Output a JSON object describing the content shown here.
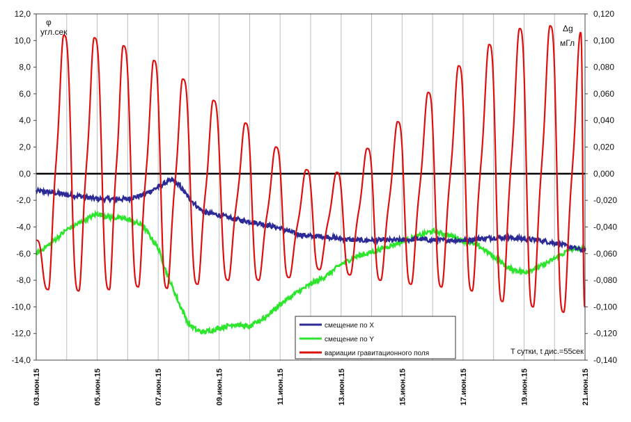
{
  "chart_data": {
    "type": "line",
    "left_axis": {
      "symbol": "φ",
      "unit": "угл.сек",
      "ylim": [
        -14,
        12
      ],
      "ticks": [
        "12,0",
        "10,0",
        "8,0",
        "6,0",
        "4,0",
        "2,0",
        "0,0",
        "-2,0",
        "-4,0",
        "-6,0",
        "-8,0",
        "-10,0",
        "-12,0",
        "-14,0"
      ]
    },
    "right_axis": {
      "symbol": "Δg",
      "unit": "мГл",
      "ylim": [
        -0.14,
        0.12
      ],
      "ticks": [
        "0,120",
        "0,100",
        "0,080",
        "0,060",
        "0,040",
        "0,020",
        "0,000",
        "-0,020",
        "-0,040",
        "-0,060",
        "-0,080",
        "-0,100",
        "-0,120",
        "-0,140"
      ]
    },
    "x_axis": {
      "range_days": [
        3,
        21
      ],
      "tick_labels": [
        "03.июн.15",
        "05.июн.15",
        "07.июн.15",
        "09.июн.15",
        "11.июн.15",
        "13.июн.15",
        "15.июн.15",
        "17.июн.15",
        "19.июн.15",
        "21.июн.15"
      ],
      "note": "T сутки, t дис.=55сек"
    },
    "grid": "vertical",
    "legend_position": "bottom-center",
    "series": [
      {
        "name": "смещение по X",
        "color": "#2b2a96",
        "axis": "left",
        "x": [
          3.0,
          3.5,
          4.0,
          4.5,
          5.0,
          5.5,
          6.0,
          6.5,
          7.0,
          7.3,
          7.5,
          7.7,
          8.0,
          8.3,
          8.5,
          9.0,
          9.5,
          10.0,
          10.5,
          11.0,
          11.5,
          12.0,
          12.5,
          13.0,
          13.5,
          14.0,
          14.5,
          15.0,
          15.5,
          16.0,
          16.5,
          17.0,
          17.5,
          18.0,
          18.5,
          19.0,
          19.5,
          20.0,
          20.5,
          21.0
        ],
        "y": [
          -1.3,
          -1.4,
          -1.6,
          -1.7,
          -1.9,
          -1.9,
          -1.9,
          -1.6,
          -1.0,
          -0.6,
          -0.5,
          -0.9,
          -1.8,
          -2.5,
          -2.9,
          -3.1,
          -3.4,
          -3.6,
          -3.8,
          -4.1,
          -4.5,
          -4.7,
          -4.7,
          -4.9,
          -5.0,
          -5.0,
          -5.0,
          -5.0,
          -4.9,
          -5.0,
          -5.0,
          -5.0,
          -4.9,
          -4.8,
          -4.8,
          -4.9,
          -5.0,
          -5.2,
          -5.5,
          -5.8
        ]
      },
      {
        "name": "смещение по Y",
        "color": "#2ee52e",
        "axis": "left",
        "x": [
          3.0,
          3.5,
          4.0,
          4.5,
          5.0,
          5.5,
          6.0,
          6.5,
          7.0,
          7.3,
          7.7,
          8.0,
          8.3,
          8.5,
          9.0,
          9.5,
          10.0,
          10.5,
          11.0,
          11.5,
          12.0,
          12.5,
          13.0,
          13.5,
          14.0,
          14.5,
          15.0,
          15.5,
          16.0,
          16.5,
          17.0,
          17.5,
          18.0,
          18.5,
          19.0,
          19.5,
          20.0,
          20.5,
          21.0
        ],
        "y": [
          -6.0,
          -5.2,
          -4.2,
          -3.6,
          -3.0,
          -3.3,
          -3.4,
          -3.9,
          -5.6,
          -7.6,
          -9.8,
          -11.3,
          -11.8,
          -11.9,
          -11.6,
          -11.3,
          -11.5,
          -10.8,
          -9.8,
          -9.0,
          -8.3,
          -7.7,
          -6.8,
          -6.2,
          -5.9,
          -5.5,
          -5.1,
          -4.7,
          -4.3,
          -4.6,
          -5.0,
          -5.4,
          -6.2,
          -7.1,
          -7.4,
          -7.0,
          -6.4,
          -5.7,
          -5.6
        ]
      },
      {
        "name": "вариации гравитационного поля",
        "color": "#dd1010",
        "axis": "right",
        "peaks": [
          {
            "day": 3.9,
            "value": 0.104
          },
          {
            "day": 4.9,
            "value": 0.102
          },
          {
            "day": 5.85,
            "value": 0.096
          },
          {
            "day": 6.85,
            "value": 0.085
          },
          {
            "day": 7.8,
            "value": 0.071
          },
          {
            "day": 8.8,
            "value": 0.055
          },
          {
            "day": 9.85,
            "value": 0.038
          },
          {
            "day": 10.85,
            "value": 0.02
          },
          {
            "day": 11.85,
            "value": 0.003
          },
          {
            "day": 12.85,
            "value": 0.001
          },
          {
            "day": 13.85,
            "value": 0.019
          },
          {
            "day": 14.85,
            "value": 0.039
          },
          {
            "day": 15.85,
            "value": 0.061
          },
          {
            "day": 16.85,
            "value": 0.081
          },
          {
            "day": 17.85,
            "value": 0.097
          },
          {
            "day": 18.85,
            "value": 0.109
          },
          {
            "day": 19.85,
            "value": 0.111
          },
          {
            "day": 20.85,
            "value": 0.106
          }
        ],
        "troughs": [
          {
            "day": 3.4,
            "value": -0.087
          },
          {
            "day": 4.4,
            "value": -0.088
          },
          {
            "day": 5.4,
            "value": -0.087
          },
          {
            "day": 6.35,
            "value": -0.085
          },
          {
            "day": 7.3,
            "value": -0.086
          },
          {
            "day": 8.3,
            "value": -0.083
          },
          {
            "day": 9.3,
            "value": -0.08
          },
          {
            "day": 10.3,
            "value": -0.08
          },
          {
            "day": 11.3,
            "value": -0.078
          },
          {
            "day": 12.3,
            "value": -0.072
          },
          {
            "day": 13.3,
            "value": -0.076
          },
          {
            "day": 14.3,
            "value": -0.08
          },
          {
            "day": 15.3,
            "value": -0.083
          },
          {
            "day": 16.3,
            "value": -0.085
          },
          {
            "day": 17.3,
            "value": -0.088
          },
          {
            "day": 18.3,
            "value": -0.096
          },
          {
            "day": 19.3,
            "value": -0.1
          },
          {
            "day": 20.3,
            "value": -0.104
          }
        ]
      }
    ]
  }
}
